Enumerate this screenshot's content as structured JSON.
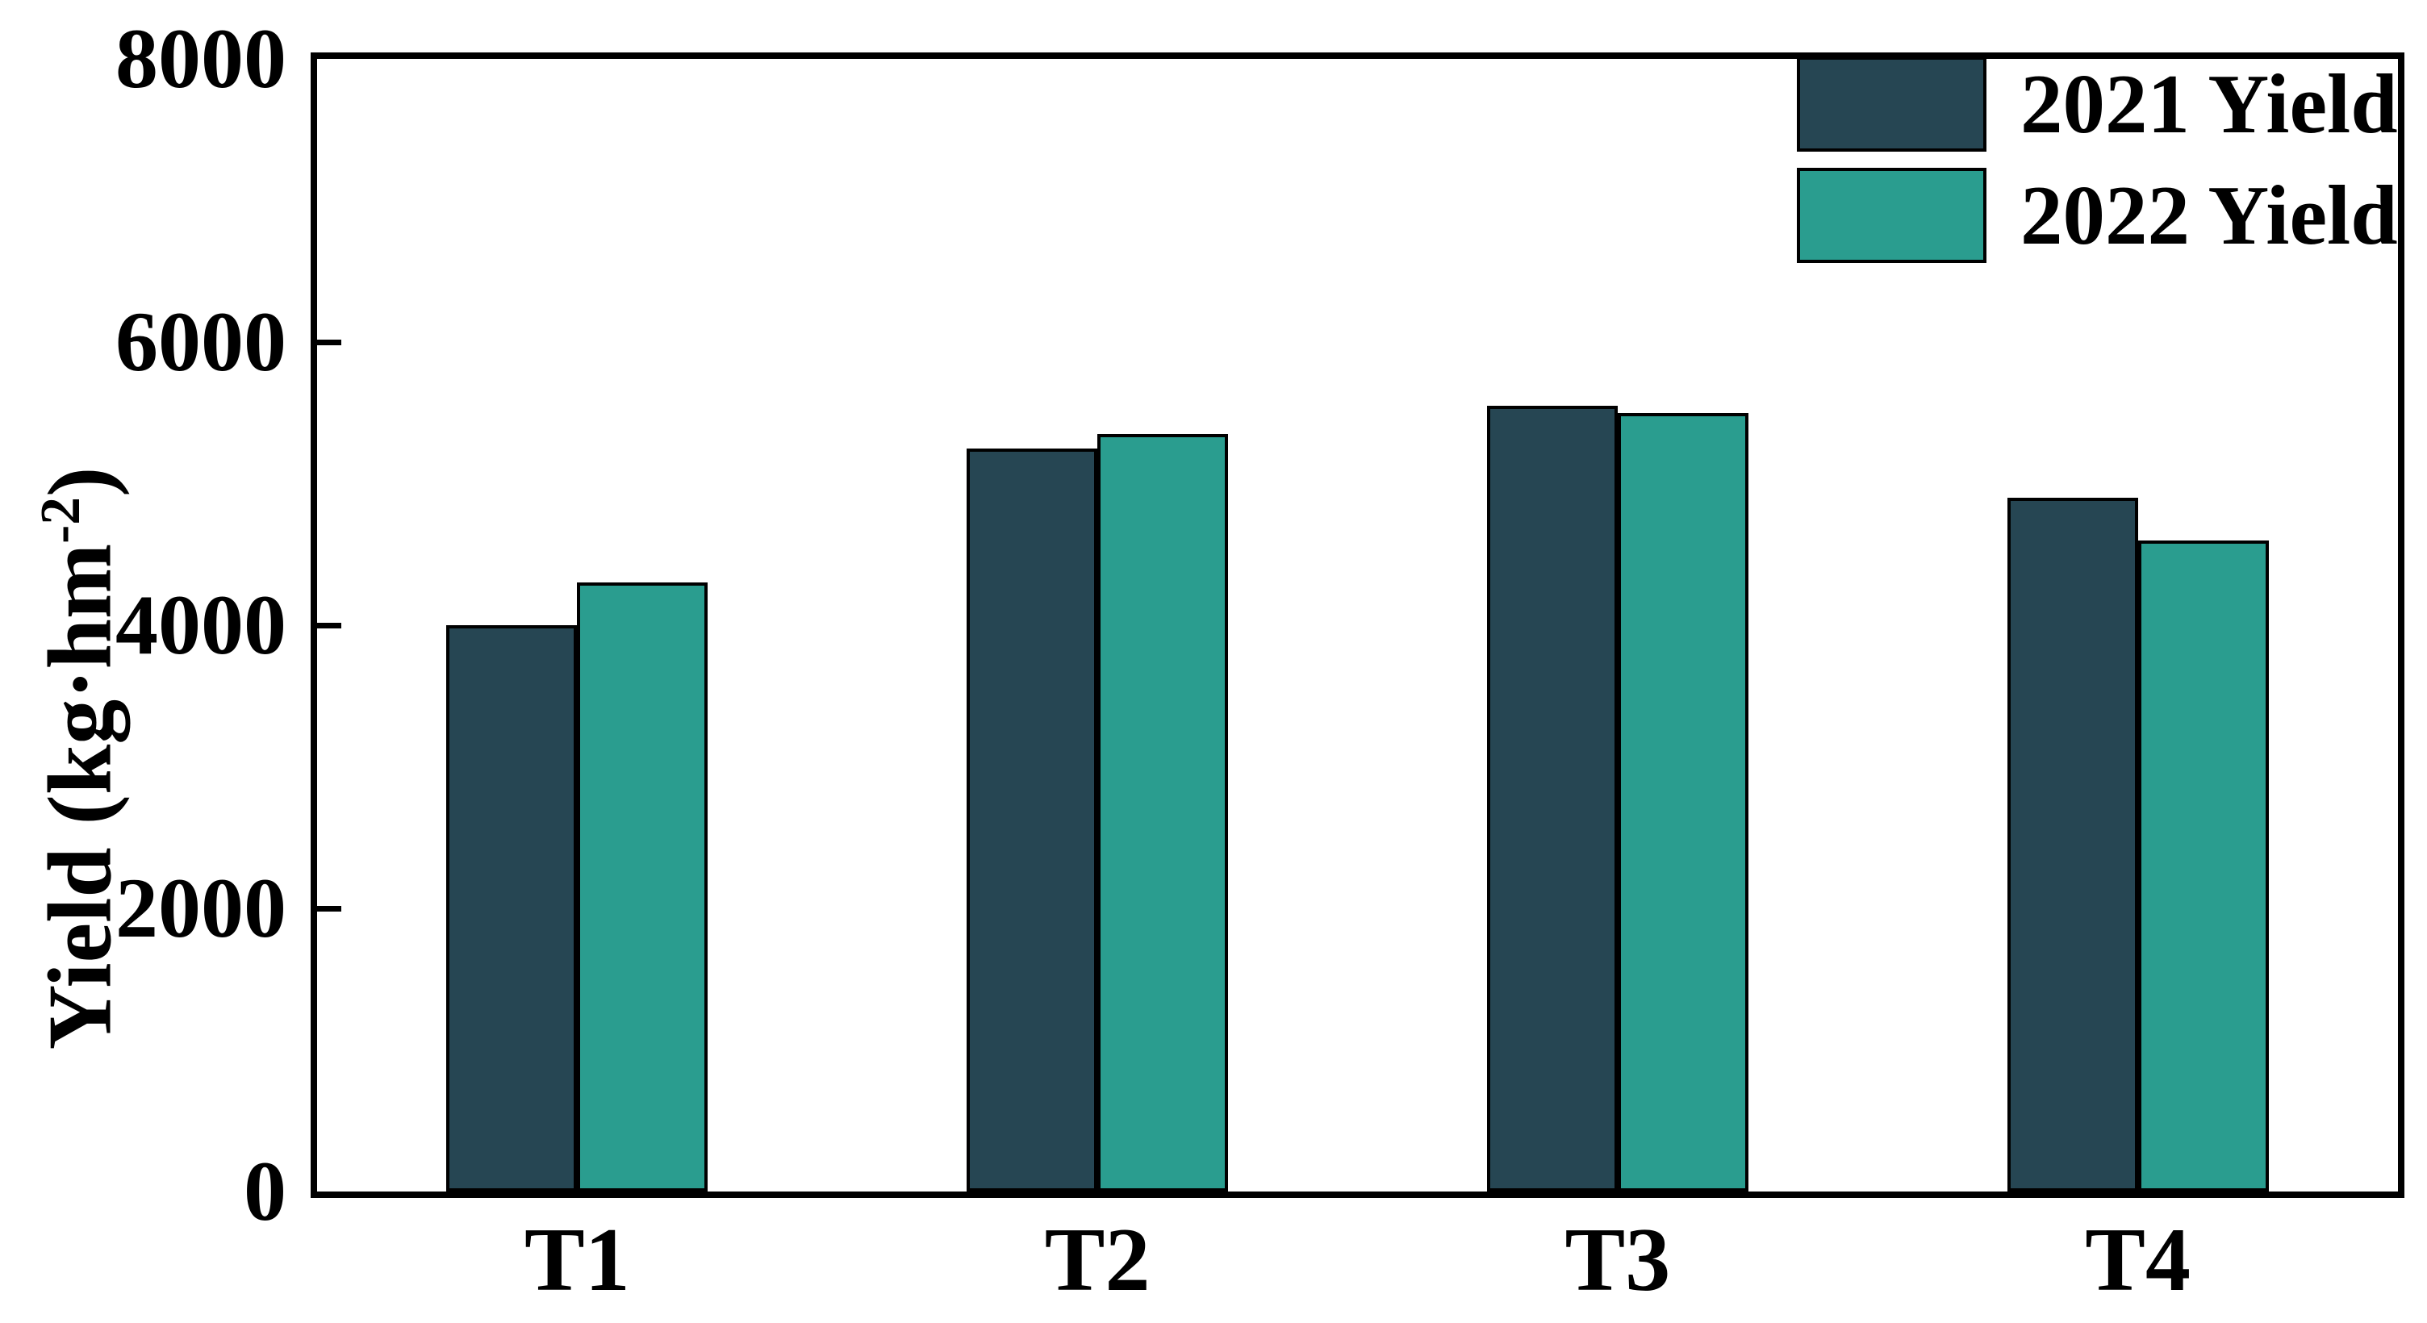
{
  "chart_data": {
    "type": "bar",
    "title": "",
    "categories": [
      "T1",
      "T2",
      "T3",
      "T4"
    ],
    "series": [
      {
        "name": "2021 Yield",
        "color": "#264653",
        "values": [
          4000,
          5250,
          5550,
          4900
        ]
      },
      {
        "name": "2022 Yield",
        "color": "#2a9d8f",
        "values": [
          4300,
          5350,
          5500,
          4600
        ]
      }
    ],
    "xlabel": "",
    "ylabel": "Yield (kg·hm⁻²)",
    "ylabel_base": "Yield (kg·hm",
    "ylabel_sup": "-2",
    "ylabel_close": ")",
    "yticks": [
      0,
      2000,
      4000,
      6000,
      8000
    ],
    "ylim": [
      0,
      8000
    ],
    "bar_edge_color": "#000000",
    "axis_color": "#000000",
    "grid": false,
    "legend": {
      "position": "upper-right",
      "entries": [
        "2021 Yield",
        "2022 Yield"
      ]
    }
  }
}
